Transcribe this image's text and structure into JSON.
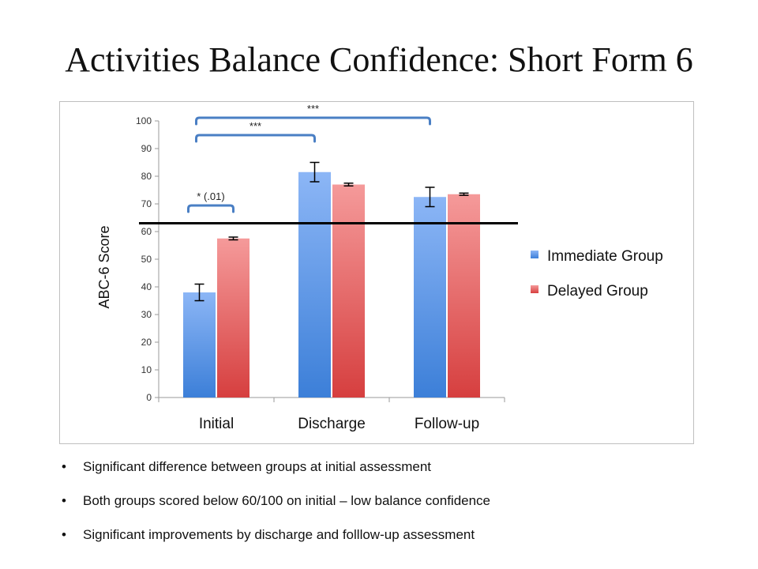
{
  "title": "Activities Balance Confidence: Short Form 6",
  "chart_data": {
    "type": "bar",
    "categories": [
      "Initial",
      "Discharge",
      "Follow-up"
    ],
    "series": [
      {
        "name": "Immediate Group",
        "values": [
          38,
          81.5,
          72.5
        ],
        "error": [
          3,
          3.5,
          3.5
        ],
        "color_top": "#8cb6f6",
        "color_bottom": "#3c7fd8"
      },
      {
        "name": "Delayed Group",
        "values": [
          57.5,
          77,
          73.5
        ],
        "error": [
          0.5,
          0.5,
          0.4
        ],
        "color_top": "#f59a9a",
        "color_bottom": "#d63f3f"
      }
    ],
    "ylabel": "ABC-6 Score",
    "xlabel": "",
    "ylim": [
      0,
      100
    ],
    "yticks": [
      0,
      10,
      20,
      30,
      40,
      50,
      60,
      70,
      80,
      90,
      100
    ],
    "grid": false,
    "legend": "right",
    "threshold_line": 63,
    "annotations": [
      {
        "label": "* (.01)",
        "from_category": 0,
        "to_category": 0
      },
      {
        "label": "***",
        "from_category": 0,
        "to_category": 1
      },
      {
        "label": "***",
        "from_category": 0,
        "to_category": 2
      }
    ]
  },
  "bullets": [
    "Significant difference between groups at initial assessment",
    "Both groups scored below 60/100 on initial – low balance confidence",
    "Significant improvements by discharge and folllow-up assessment"
  ]
}
